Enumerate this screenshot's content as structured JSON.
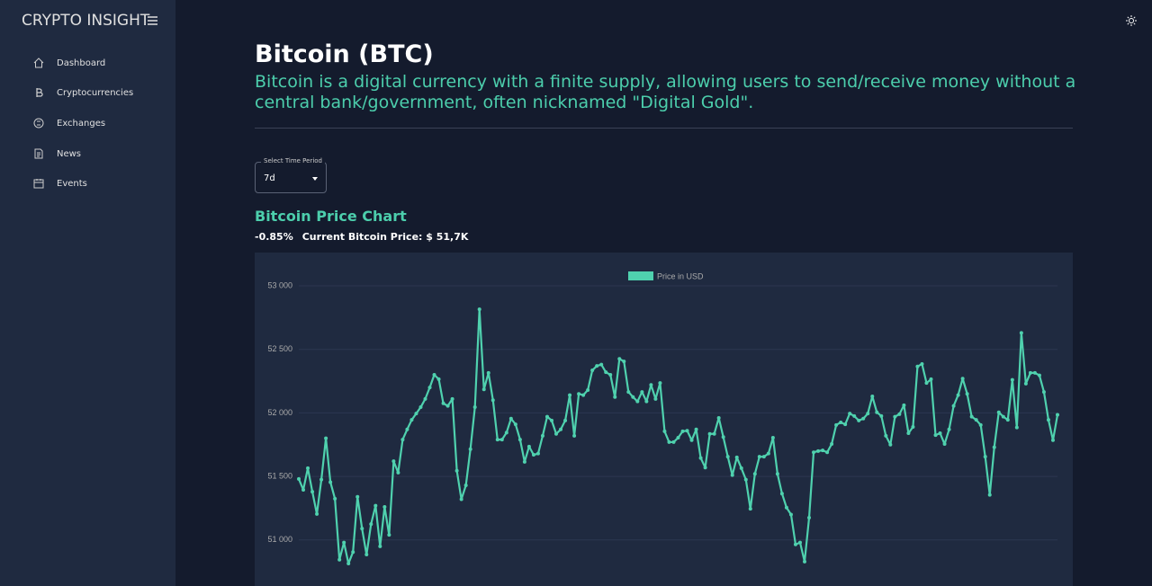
{
  "sidebar": {
    "brand": "CRYPTO INSIGHT",
    "nav": [
      "Dashboard",
      "Cryptocurrencies",
      "Exchanges",
      "News",
      "Events"
    ]
  },
  "header": {
    "title": "Bitcoin (BTC)",
    "description": "Bitcoin is a digital currency with a finite supply, allowing users to send/receive money without a central bank/government, often nicknamed \"Digital Gold\"."
  },
  "select": {
    "label": "Select Time Period",
    "value": "7d"
  },
  "stats": {
    "change": "-0.85%",
    "current_price": "Current Bitcoin Price: $ 51,7K"
  },
  "chart_data": {
    "type": "line",
    "title": "Bitcoin Price Chart",
    "series": [
      {
        "name": "Price in USD",
        "color": "#4fd1ae",
        "values": [
          51480,
          51395,
          51565,
          51380,
          51205,
          51475,
          51800,
          51455,
          51325,
          50845,
          50980,
          50815,
          50905,
          51340,
          51090,
          50885,
          51125,
          51270,
          50950,
          51260,
          51040,
          51620,
          51530,
          51790,
          51870,
          51945,
          51995,
          52045,
          52110,
          52200,
          52300,
          52265,
          52075,
          52055,
          52110,
          51545,
          51320,
          51430,
          51715,
          52045,
          52815,
          52185,
          52315,
          52100,
          51790,
          51790,
          51845,
          51955,
          51910,
          51790,
          51615,
          51735,
          51670,
          51680,
          51820,
          51970,
          51940,
          51835,
          51870,
          51940,
          52140,
          51820,
          52150,
          52140,
          52180,
          52335,
          52370,
          52380,
          52320,
          52300,
          52125,
          52425,
          52405,
          52165,
          52125,
          52090,
          52165,
          52090,
          52220,
          52110,
          52235,
          51855,
          51770,
          51770,
          51805,
          51855,
          51860,
          51785,
          51870,
          51645,
          51570,
          51835,
          51835,
          51960,
          51810,
          51655,
          51510,
          51650,
          51565,
          51475,
          51245,
          51520,
          51655,
          51655,
          51680,
          51805,
          51520,
          51365,
          51255,
          51200,
          50965,
          50980,
          50830,
          51175,
          51690,
          51700,
          51705,
          51690,
          51755,
          51905,
          51925,
          51910,
          51995,
          51975,
          51940,
          51955,
          51995,
          52130,
          52005,
          51975,
          51820,
          51750,
          51970,
          51990,
          52060,
          51840,
          51890,
          52365,
          52385,
          52235,
          52265,
          51825,
          51840,
          51755,
          51870,
          52055,
          52140,
          52270,
          52150,
          51970,
          51945,
          51905,
          51655,
          51355,
          51730,
          52005,
          51970,
          51945,
          52260,
          51885,
          52630,
          52230,
          52315,
          52315,
          52295,
          52165,
          51945,
          51785,
          51985
        ]
      }
    ],
    "ylim": [
      50500,
      53000
    ],
    "yticks": [
      {
        "value": 51000,
        "label": "51 000"
      },
      {
        "value": 51500,
        "label": "51 500"
      },
      {
        "value": 52000,
        "label": "52 000"
      },
      {
        "value": 52500,
        "label": "52 500"
      },
      {
        "value": 53000,
        "label": "53 000"
      }
    ],
    "grid": true,
    "legend": "top"
  }
}
